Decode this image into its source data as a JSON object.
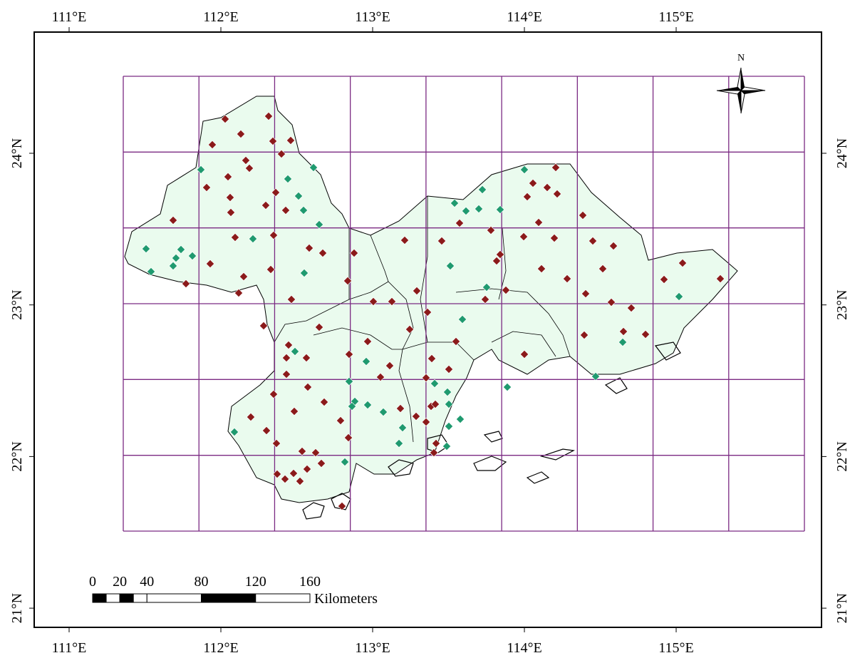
{
  "lon_labels": [
    "111°E",
    "112°E",
    "113°E",
    "114°E",
    "115°E"
  ],
  "lat_labels": [
    "24°N",
    "23°N",
    "22°N",
    "21°N"
  ],
  "north_label": "N",
  "scale_bar": {
    "ticks": [
      0,
      20,
      40,
      80,
      120,
      160
    ],
    "unit": "Kilometers"
  }
}
